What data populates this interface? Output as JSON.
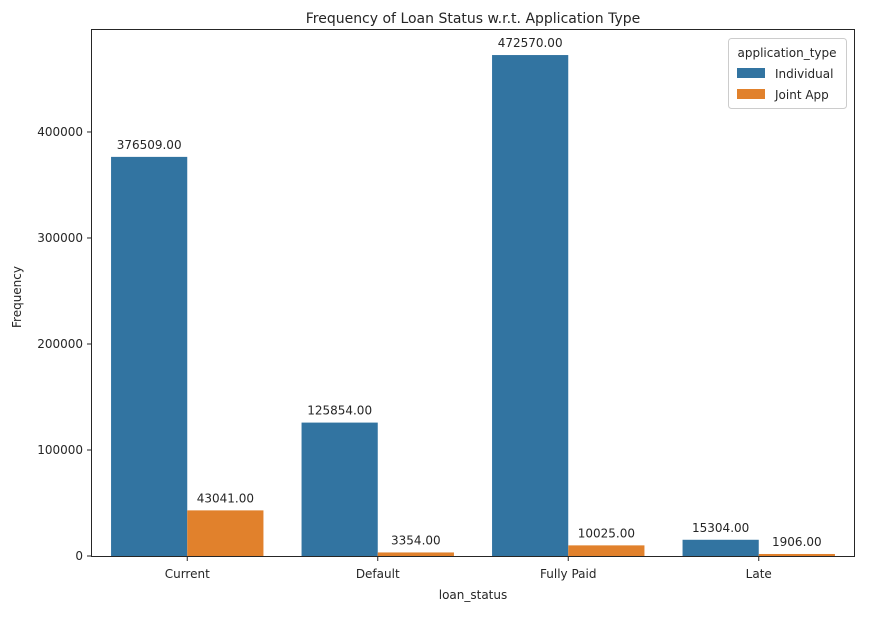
{
  "chart_data": {
    "type": "bar",
    "title": "Frequency of Loan Status w.r.t. Application Type",
    "xlabel": "loan_status",
    "ylabel": "Frequency",
    "categories": [
      "Current",
      "Default",
      "Fully Paid",
      "Late"
    ],
    "series": [
      {
        "name": "Individual",
        "color": "#3274a1",
        "values": [
          376509,
          125854,
          472570,
          15304
        ]
      },
      {
        "name": "Joint App",
        "color": "#e1812c",
        "values": [
          43041,
          3354,
          10025,
          1906
        ]
      }
    ],
    "data_labels": [
      [
        "376509.00",
        "125854.00",
        "472570.00",
        "15304.00"
      ],
      [
        "43041.00",
        "3354.00",
        "10025.00",
        "1906.00"
      ]
    ],
    "yticks": [
      0,
      100000,
      200000,
      300000,
      400000
    ],
    "ylim": [
      0,
      496199
    ],
    "legend": {
      "title": "application_type",
      "position": "top-right"
    },
    "grid": false
  }
}
